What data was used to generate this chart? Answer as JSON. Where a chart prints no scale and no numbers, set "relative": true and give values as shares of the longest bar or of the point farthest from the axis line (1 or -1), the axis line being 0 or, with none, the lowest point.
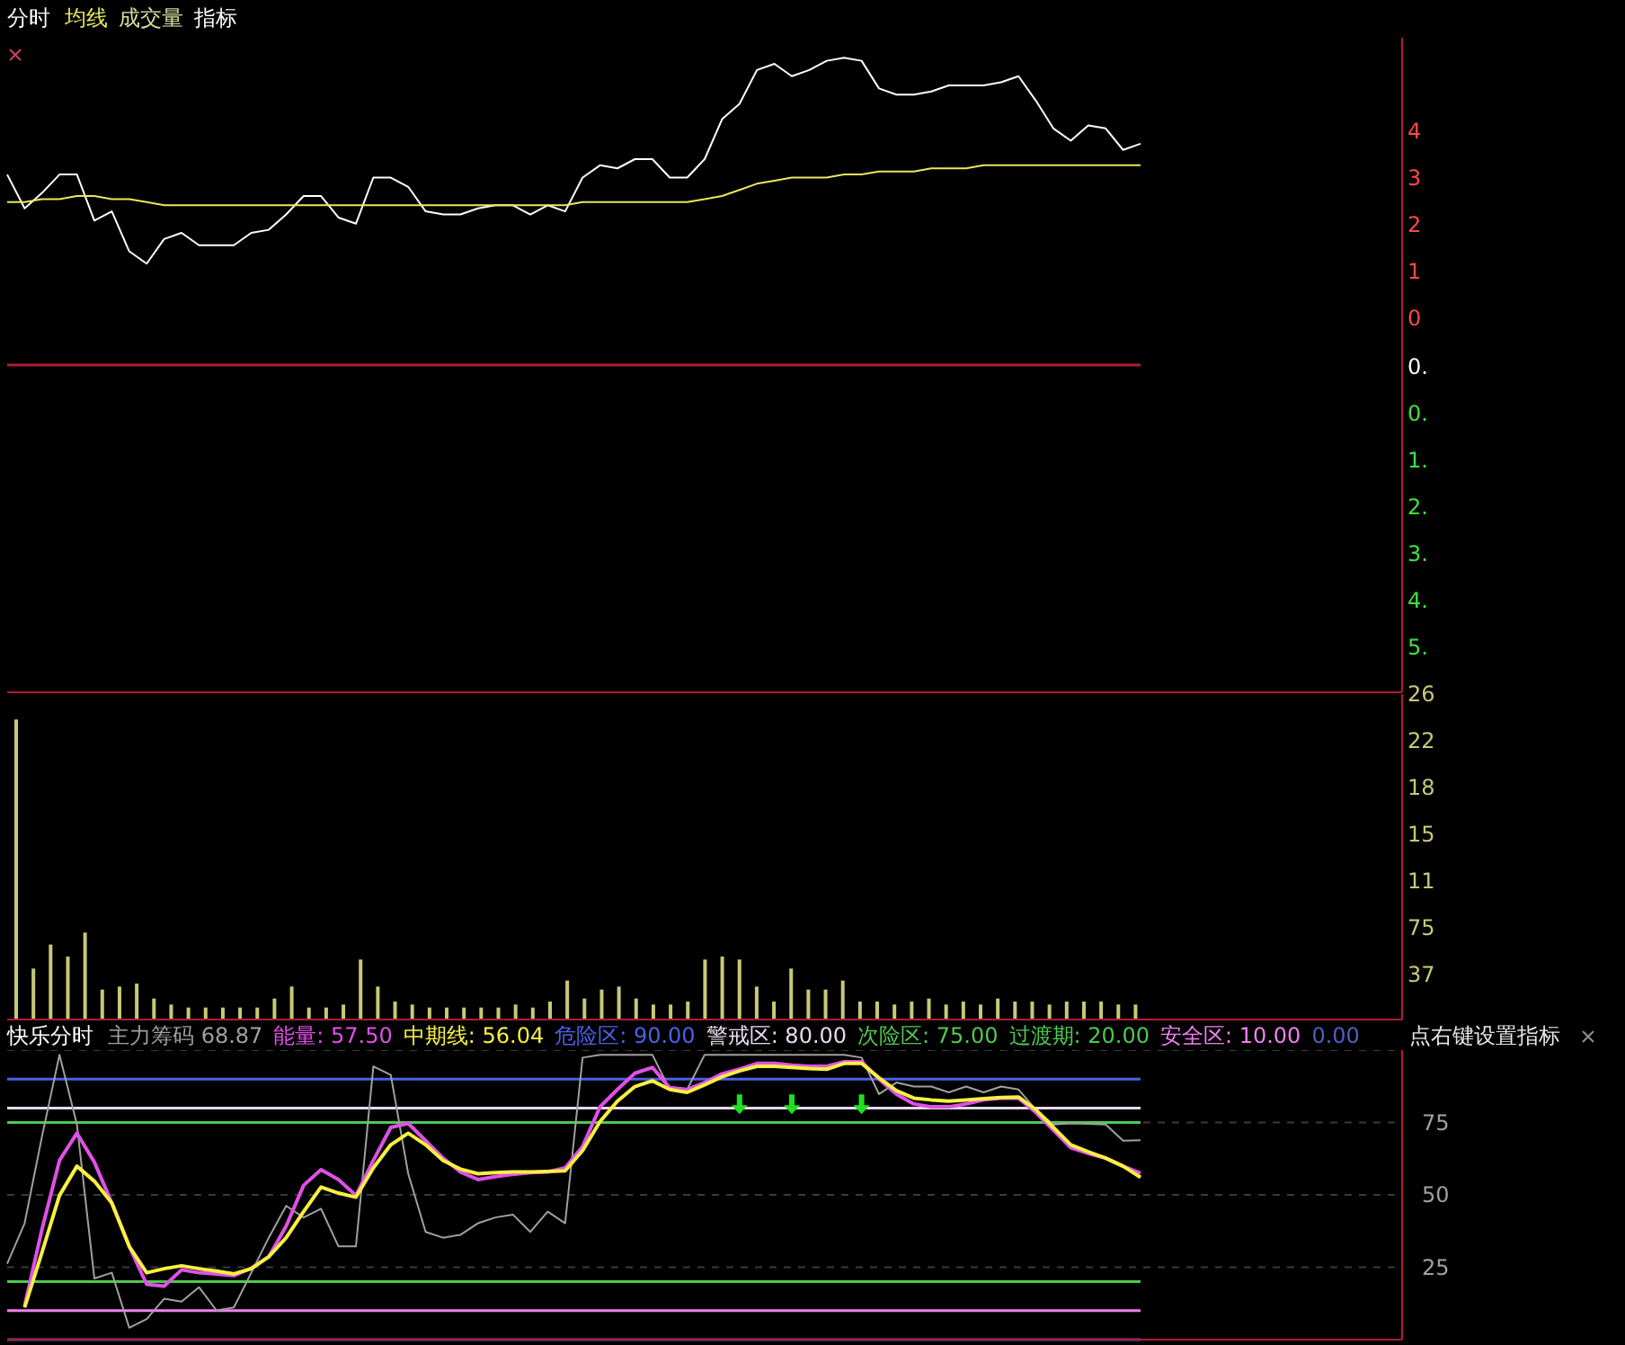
{
  "chart_data": [
    {
      "type": "line",
      "title": "分时",
      "legend": "top left",
      "tick_labels": false,
      "relative": true,
      "line_style": "solid",
      "annotations": [
        "成交量",
        "指标",
        "4",
        "3",
        "2",
        "1",
        "0",
        "0.",
        "0.",
        "1.",
        "2.",
        "3.",
        "4.",
        "5."
      ],
      "ref_lines": [
        {
          "axis": "y",
          "value": 0,
          "label": null,
          "color": "#b01c30"
        }
      ],
      "categories": [
        null,
        null,
        null,
        null,
        null,
        null,
        null,
        null,
        null,
        null,
        null,
        null,
        null,
        null,
        null,
        null,
        null,
        null,
        null,
        null,
        null,
        null,
        null,
        null,
        null,
        null,
        null,
        null,
        null,
        null,
        null,
        null,
        null,
        null,
        null,
        null,
        null,
        null,
        null,
        null,
        null,
        null,
        null,
        null,
        null,
        null,
        null,
        null,
        null,
        null,
        null,
        null,
        null,
        null,
        null,
        null,
        null,
        null,
        null,
        null,
        null,
        null,
        null,
        null,
        null,
        null,
        null,
        null,
        null,
        null,
        null,
        null,
        null,
        null,
        null,
        null,
        null,
        null,
        null,
        null,
        null
      ],
      "series": [
        {
          "color": "#ffffff",
          "values": [
            0.62,
            0.51,
            0.56,
            0.62,
            0.62,
            0.47,
            0.5,
            0.37,
            0.33,
            0.41,
            0.43,
            0.39,
            0.39,
            0.39,
            0.43,
            0.44,
            0.49,
            0.55,
            0.55,
            0.48,
            0.46,
            0.61,
            0.61,
            0.58,
            0.5,
            0.49,
            0.49,
            0.51,
            0.52,
            0.52,
            0.49,
            0.52,
            0.5,
            0.61,
            0.65,
            0.64,
            0.67,
            0.67,
            0.61,
            0.61,
            0.67,
            0.8,
            0.85,
            0.96,
            0.98,
            0.94,
            0.96,
            0.99,
            1,
            0.99,
            0.9,
            0.88,
            0.88,
            0.89,
            0.91,
            0.91,
            0.91,
            0.92,
            0.94,
            0.86,
            0.77,
            0.73,
            0.78,
            0.77,
            0.7,
            0.72,
            null,
            null,
            null,
            null,
            null,
            null,
            null,
            null,
            null,
            null,
            null,
            null,
            null,
            null,
            null
          ]
        },
        {
          "name": "均线",
          "color": "#e8e860",
          "values": [
            0.53,
            0.53,
            0.54,
            0.54,
            0.55,
            0.55,
            0.54,
            0.54,
            0.53,
            0.52,
            0.52,
            0.52,
            0.52,
            0.52,
            0.52,
            0.52,
            0.52,
            0.52,
            0.52,
            0.52,
            0.52,
            0.52,
            0.52,
            0.52,
            0.52,
            0.52,
            0.52,
            0.52,
            0.52,
            0.52,
            0.52,
            0.52,
            0.52,
            0.53,
            0.53,
            0.53,
            0.53,
            0.53,
            0.53,
            0.53,
            0.54,
            0.55,
            0.57,
            0.59,
            0.6,
            0.61,
            0.61,
            0.61,
            0.62,
            0.62,
            0.63,
            0.63,
            0.63,
            0.64,
            0.64,
            0.64,
            0.65,
            0.65,
            0.65,
            0.65,
            0.65,
            0.65,
            0.65,
            0.65,
            0.65,
            0.65,
            null,
            null,
            null,
            null,
            null,
            null,
            null,
            null,
            null,
            null,
            null,
            null,
            null,
            null,
            null
          ]
        }
      ]
    },
    {
      "type": "bar",
      "tick_labels": false,
      "relative": true,
      "annotations": [
        "26",
        "22",
        "18",
        "15",
        "11",
        "75",
        "37"
      ],
      "categories": [
        null,
        null,
        null,
        null,
        null,
        null,
        null,
        null,
        null,
        null,
        null,
        null,
        null,
        null,
        null,
        null,
        null,
        null,
        null,
        null,
        null,
        null,
        null,
        null,
        null,
        null,
        null,
        null,
        null,
        null,
        null,
        null,
        null,
        null,
        null,
        null,
        null,
        null,
        null,
        null,
        null,
        null,
        null,
        null,
        null,
        null,
        null,
        null,
        null,
        null,
        null,
        null,
        null,
        null,
        null,
        null,
        null,
        null,
        null,
        null,
        null,
        null,
        null,
        null,
        null,
        null,
        null,
        null,
        null,
        null,
        null,
        null,
        null,
        null,
        null,
        null,
        null,
        null,
        null,
        null,
        null
      ],
      "series": [
        {
          "color": "#c8c878",
          "values": [
            1,
            0.17,
            0.25,
            0.21,
            0.29,
            0.1,
            0.11,
            0.12,
            0.07,
            0.05,
            0.04,
            0.04,
            0.04,
            0.04,
            0.04,
            0.07,
            0.11,
            0.04,
            0.04,
            0.05,
            0.2,
            0.11,
            0.06,
            0.05,
            0.04,
            0.04,
            0.04,
            0.04,
            0.04,
            0.05,
            0.04,
            0.06,
            0.13,
            0.07,
            0.1,
            0.11,
            0.07,
            0.05,
            0.05,
            0.06,
            0.2,
            0.21,
            0.2,
            0.11,
            0.06,
            0.17,
            0.1,
            0.1,
            0.13,
            0.06,
            0.06,
            0.05,
            0.06,
            0.07,
            0.05,
            0.06,
            0.05,
            0.07,
            0.06,
            0.06,
            0.05,
            0.06,
            0.06,
            0.06,
            0.05,
            0.05,
            null,
            null,
            null,
            null,
            null,
            null,
            null,
            null,
            null,
            null,
            null,
            null,
            null,
            null,
            null
          ]
        }
      ]
    },
    {
      "type": "line",
      "title": "快乐分时",
      "legend": "top left",
      "grid": "y",
      "tick_labels": "y",
      "line_style": "solid",
      "annotations": [
        "点右键设置指标"
      ],
      "categories": [
        null,
        null,
        null,
        null,
        null,
        null,
        null,
        null,
        null,
        null,
        null,
        null,
        null,
        null,
        null,
        null,
        null,
        null,
        null,
        null,
        null,
        null,
        null,
        null,
        null,
        null,
        null,
        null,
        null,
        null,
        null,
        null,
        null,
        null,
        null,
        null,
        null,
        null,
        null,
        null,
        null,
        null,
        null,
        null,
        null,
        null,
        null,
        null,
        null,
        null,
        null,
        null,
        null,
        null,
        null,
        null,
        null,
        null,
        null,
        null,
        null,
        null,
        null,
        null,
        null,
        null,
        null,
        null,
        null,
        null,
        null,
        null,
        null,
        null,
        null,
        null,
        null,
        null,
        null,
        null,
        null
      ],
      "ylim": [
        0,
        100
      ],
      "yticks": [
        25,
        50,
        75
      ],
      "ref_lines": [
        {
          "axis": "y",
          "value": 90,
          "label": "危险区: 90.00",
          "color": "#4a62e8"
        },
        {
          "axis": "y",
          "value": 80,
          "label": "警戒区: 80.00",
          "color": "#e8d8f0"
        },
        {
          "axis": "y",
          "value": 75,
          "label": "次险区: 75.00",
          "color": "#50c850"
        },
        {
          "axis": "y",
          "value": 20,
          "label": "过渡期: 20.00",
          "color": "#50c850"
        },
        {
          "axis": "y",
          "value": 10,
          "label": "安全区: 10.00",
          "color": "#f080f0"
        },
        {
          "axis": "y",
          "value": 0,
          "label": "0.00",
          "color": "#5060c0"
        }
      ],
      "series": [
        {
          "name": "主力筹码 68.87",
          "color": "#a0a0a0",
          "values": [
            26.2,
            40.2,
            70.3,
            98.4,
            74.3,
            21.1,
            23.1,
            4.1,
            7.1,
            14.1,
            13.1,
            18.1,
            10.1,
            11.1,
            23.1,
            35.2,
            46.2,
            42.2,
            45.2,
            32.2,
            32.2,
            94.4,
            91.4,
            57.3,
            37.2,
            35.2,
            36.2,
            40.2,
            42.2,
            43.2,
            37.2,
            44.2,
            40.2,
            97.4,
            98.4,
            98.4,
            98.4,
            98.4,
            86.4,
            86.4,
            98.4,
            98.4,
            98.4,
            98.4,
            98.4,
            98.4,
            98.4,
            98.4,
            98.4,
            97.4,
            84.8,
            88.8,
            87.4,
            87.4,
            85.4,
            87.4,
            85.4,
            87.4,
            86.4,
            79.4,
            74.3,
            74.7,
            74.5,
            74.3,
            68.7,
            68.87,
            null,
            null,
            null,
            null,
            null,
            null,
            null,
            null,
            null,
            null,
            null,
            null,
            null,
            null,
            null
          ]
        },
        {
          "name": "能量: 57.50",
          "color": "#e050e8",
          "values": [
            null,
            11.7,
            38.2,
            61.9,
            71.3,
            61.3,
            47.2,
            32.2,
            19.1,
            18.5,
            24.1,
            23.1,
            22.7,
            22.1,
            24.7,
            28.6,
            39.2,
            53.3,
            58.7,
            55.3,
            49.8,
            61.9,
            73.3,
            74.7,
            68.7,
            62.7,
            57.9,
            55.3,
            56.3,
            57.1,
            57.7,
            57.9,
            59.3,
            66.7,
            80.4,
            86.4,
            92.0,
            94.0,
            87.0,
            86.4,
            88.8,
            91.8,
            93.4,
            95.4,
            95.4,
            94.8,
            94.4,
            94.4,
            96.0,
            96.0,
            90.0,
            84.8,
            81.4,
            80.4,
            80.4,
            81.4,
            82.8,
            83.4,
            83.4,
            78.4,
            72.3,
            66.3,
            64.3,
            62.7,
            59.9,
            57.5,
            null,
            null,
            null,
            null,
            null,
            null,
            null,
            null,
            null,
            null,
            null,
            null,
            null,
            null,
            null
          ]
        },
        {
          "name": "中期线: 56.04",
          "color": "#f8f040",
          "values": [
            null,
            11.1,
            30.2,
            49.8,
            59.9,
            54.7,
            47.2,
            32.2,
            23.1,
            24.5,
            25.5,
            24.5,
            23.7,
            22.7,
            24.5,
            28.6,
            35.2,
            44.2,
            52.7,
            50.6,
            49.2,
            59.3,
            67.3,
            71.3,
            67.3,
            61.9,
            58.9,
            57.3,
            57.7,
            57.9,
            57.9,
            58.1,
            58.3,
            65.3,
            75.3,
            82.4,
            87.4,
            89.4,
            86.4,
            85.4,
            88.0,
            90.8,
            92.8,
            94.4,
            94.4,
            94.0,
            93.6,
            93.4,
            95.4,
            95.4,
            90.4,
            86.0,
            83.4,
            82.8,
            82.4,
            82.8,
            83.2,
            83.6,
            83.8,
            79.4,
            73.3,
            67.3,
            64.9,
            62.7,
            59.9,
            56.04,
            null,
            null,
            null,
            null,
            null,
            null,
            null,
            null,
            null,
            null,
            null,
            null,
            null,
            null,
            null
          ]
        },
        {
          "type": "scatter",
          "color": "#20e020",
          "values": [
            null,
            null,
            null,
            null,
            null,
            null,
            null,
            null,
            null,
            null,
            null,
            null,
            null,
            null,
            null,
            null,
            null,
            null,
            null,
            null,
            null,
            null,
            null,
            null,
            null,
            null,
            null,
            null,
            null,
            null,
            null,
            null,
            null,
            null,
            null,
            null,
            null,
            null,
            null,
            null,
            null,
            null,
            81,
            null,
            null,
            81,
            null,
            null,
            null,
            81,
            null,
            null,
            null,
            null,
            null,
            null,
            null,
            null,
            null,
            null,
            null,
            null,
            null,
            null,
            null,
            null,
            null,
            null,
            null,
            null,
            null,
            null,
            null,
            null,
            null,
            null,
            null,
            null,
            null,
            null,
            null
          ]
        }
      ]
    }
  ]
}
